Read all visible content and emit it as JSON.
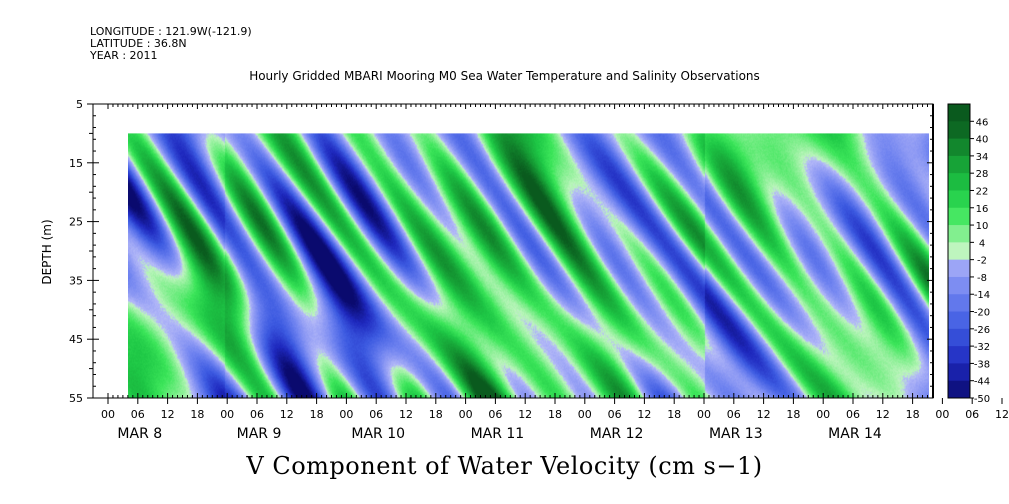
{
  "header": {
    "longitude": "LONGITUDE : 121.9W(-121.9)",
    "latitude": "LATITUDE : 36.8N",
    "year": "YEAR : 2011"
  },
  "chart_data": {
    "type": "heatmap",
    "title": "Hourly Gridded MBARI Mooring M0 Sea Water Temperature and Salinity Observations",
    "xlabel": "",
    "ylabel": "DEPTH (m)",
    "variable_label": "V Component of Water Velocity (cm s-1)",
    "y_axis": {
      "range": [
        5,
        55
      ],
      "inverted": true,
      "ticks": [
        5,
        15,
        25,
        35,
        45,
        55
      ],
      "data_range": [
        10,
        55
      ]
    },
    "x_axis": {
      "hour_ticks": [
        "00",
        "06",
        "12",
        "18",
        "00",
        "06",
        "12",
        "18",
        "00",
        "06",
        "12",
        "18",
        "00",
        "06",
        "12",
        "18",
        "00",
        "06",
        "12",
        "18",
        "00",
        "06",
        "12",
        "18",
        "00",
        "06",
        "12",
        "18",
        "00",
        "06",
        "12",
        "18"
      ],
      "day_labels": [
        "MAR  8",
        "MAR  9",
        "MAR 10",
        "MAR 11",
        "MAR 12",
        "MAR 13",
        "MAR 14"
      ]
    },
    "colorbar": {
      "levels": [
        46,
        40,
        34,
        28,
        22,
        16,
        10,
        4,
        -2,
        -8,
        -14,
        -20,
        -26,
        -32,
        -38,
        -44,
        -50
      ],
      "range": [
        -50,
        50
      ],
      "negative_color": "#1020a0",
      "positive_color": "#0a7a2a"
    },
    "patterns": {
      "description_periods": [
        {
          "day": "MAR 8",
          "dominant": "negative"
        },
        {
          "day": "MAR 9",
          "dominant": "mixed"
        },
        {
          "day": "MAR 10",
          "dominant": "mixed"
        },
        {
          "day": "MAR 11",
          "dominant": "positive"
        },
        {
          "day": "MAR 12",
          "dominant": "positive"
        },
        {
          "day": "MAR 13",
          "dominant": "mixed"
        },
        {
          "day": "MAR 14",
          "dominant": "mixed"
        }
      ]
    }
  },
  "footer": {
    "variable_label": "V Component of Water Velocity (cm s−1)"
  }
}
